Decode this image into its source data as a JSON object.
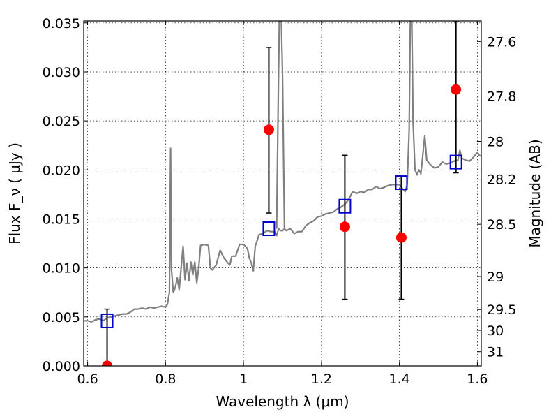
{
  "chart_data": {
    "type": "scatter",
    "title": "",
    "xlabel": "Wavelength  λ (μm)",
    "ylabel": "Flux  F_ν  ( μJy )",
    "ylabel_right": "Magnitude (AB)",
    "xlim": [
      0.59,
      1.61
    ],
    "ylim": [
      0.0,
      0.0352
    ],
    "grid": true,
    "x_ticks": [
      0.6,
      0.8,
      1.0,
      1.2,
      1.4,
      1.6
    ],
    "x_tick_labels": [
      "0.6",
      "0.8",
      "1",
      "1.2",
      "1.4",
      "1.6"
    ],
    "y_ticks": [
      0.0,
      0.005,
      0.01,
      0.015,
      0.02,
      0.025,
      0.03,
      0.035
    ],
    "y_tick_labels": [
      "0.000",
      "0.005",
      "0.010",
      "0.015",
      "0.020",
      "0.025",
      "0.030",
      "0.035"
    ],
    "right_ticks": [
      {
        "label": "27.6",
        "mag": 27.6
      },
      {
        "label": "27.8",
        "mag": 27.8
      },
      {
        "label": "28",
        "mag": 28.0
      },
      {
        "label": "28.2",
        "mag": 28.2
      },
      {
        "label": "28.5",
        "mag": 28.5
      },
      {
        "label": "29",
        "mag": 29.0
      },
      {
        "label": "29.5",
        "mag": 29.5
      },
      {
        "label": "30",
        "mag": 30.0
      },
      {
        "label": "31",
        "mag": 31.0
      }
    ],
    "series": [
      {
        "kind": "line",
        "color": "#808080",
        "points": [
          [
            0.59,
            0.0046
          ],
          [
            0.6,
            0.0046
          ],
          [
            0.61,
            0.0045
          ],
          [
            0.62,
            0.0047
          ],
          [
            0.63,
            0.0048
          ],
          [
            0.64,
            0.0046
          ],
          [
            0.65,
            0.0049
          ],
          [
            0.66,
            0.005
          ],
          [
            0.67,
            0.0051
          ],
          [
            0.68,
            0.0052
          ],
          [
            0.69,
            0.0053
          ],
          [
            0.7,
            0.0053
          ],
          [
            0.71,
            0.0055
          ],
          [
            0.72,
            0.0058
          ],
          [
            0.73,
            0.0058
          ],
          [
            0.74,
            0.0059
          ],
          [
            0.75,
            0.0058
          ],
          [
            0.76,
            0.006
          ],
          [
            0.77,
            0.0059
          ],
          [
            0.78,
            0.006
          ],
          [
            0.79,
            0.0061
          ],
          [
            0.8,
            0.006
          ],
          [
            0.805,
            0.0063
          ],
          [
            0.81,
            0.0075
          ],
          [
            0.813,
            0.0222
          ],
          [
            0.815,
            0.01
          ],
          [
            0.82,
            0.0075
          ],
          [
            0.825,
            0.008
          ],
          [
            0.83,
            0.009
          ],
          [
            0.835,
            0.0078
          ],
          [
            0.84,
            0.01
          ],
          [
            0.845,
            0.0122
          ],
          [
            0.85,
            0.0088
          ],
          [
            0.855,
            0.0105
          ],
          [
            0.86,
            0.0087
          ],
          [
            0.865,
            0.0106
          ],
          [
            0.87,
            0.0093
          ],
          [
            0.875,
            0.0106
          ],
          [
            0.88,
            0.0085
          ],
          [
            0.885,
            0.01
          ],
          [
            0.89,
            0.0123
          ],
          [
            0.9,
            0.0124
          ],
          [
            0.91,
            0.0123
          ],
          [
            0.915,
            0.01
          ],
          [
            0.92,
            0.0098
          ],
          [
            0.93,
            0.0103
          ],
          [
            0.94,
            0.0118
          ],
          [
            0.95,
            0.011
          ],
          [
            0.96,
            0.0105
          ],
          [
            0.965,
            0.0103
          ],
          [
            0.97,
            0.0112
          ],
          [
            0.98,
            0.0112
          ],
          [
            0.99,
            0.0124
          ],
          [
            1.0,
            0.0124
          ],
          [
            1.01,
            0.012
          ],
          [
            1.015,
            0.011
          ],
          [
            1.02,
            0.0105
          ],
          [
            1.025,
            0.0097
          ],
          [
            1.03,
            0.0122
          ],
          [
            1.04,
            0.0134
          ],
          [
            1.05,
            0.0135
          ],
          [
            1.06,
            0.0138
          ],
          [
            1.07,
            0.0137
          ],
          [
            1.08,
            0.0137
          ],
          [
            1.085,
            0.0133
          ],
          [
            1.09,
            0.014
          ],
          [
            1.095,
            0.0138
          ],
          [
            1.1,
            0.0138
          ],
          [
            1.105,
            0.014
          ],
          [
            1.11,
            0.0138
          ],
          [
            1.12,
            0.014
          ],
          [
            1.13,
            0.0135
          ],
          [
            1.14,
            0.0137
          ],
          [
            1.15,
            0.0137
          ],
          [
            1.16,
            0.0143
          ],
          [
            1.17,
            0.0146
          ],
          [
            1.18,
            0.0148
          ],
          [
            1.19,
            0.0152
          ],
          [
            1.2,
            0.0153
          ],
          [
            1.21,
            0.0155
          ],
          [
            1.22,
            0.0156
          ],
          [
            1.23,
            0.0157
          ],
          [
            1.24,
            0.016
          ],
          [
            1.25,
            0.0162
          ],
          [
            1.26,
            0.0165
          ],
          [
            1.27,
            0.017
          ],
          [
            1.28,
            0.0178
          ],
          [
            1.29,
            0.0176
          ],
          [
            1.3,
            0.0178
          ],
          [
            1.31,
            0.0177
          ],
          [
            1.32,
            0.018
          ],
          [
            1.33,
            0.018
          ],
          [
            1.34,
            0.0183
          ],
          [
            1.35,
            0.0181
          ],
          [
            1.36,
            0.0182
          ],
          [
            1.37,
            0.0184
          ],
          [
            1.38,
            0.0185
          ],
          [
            1.39,
            0.0185
          ],
          [
            1.4,
            0.0185
          ],
          [
            1.41,
            0.018
          ],
          [
            1.415,
            0.0178
          ],
          [
            1.42,
            0.0185
          ],
          [
            1.425,
            0.024
          ],
          [
            1.428,
            0.0352
          ],
          [
            1.432,
            0.0352
          ],
          [
            1.435,
            0.025
          ],
          [
            1.44,
            0.02
          ],
          [
            1.445,
            0.0195
          ],
          [
            1.45,
            0.02
          ],
          [
            1.455,
            0.0196
          ],
          [
            1.46,
            0.0215
          ],
          [
            1.465,
            0.0235
          ],
          [
            1.47,
            0.021
          ],
          [
            1.48,
            0.0205
          ],
          [
            1.49,
            0.0202
          ],
          [
            1.5,
            0.0203
          ],
          [
            1.51,
            0.0208
          ],
          [
            1.52,
            0.0206
          ],
          [
            1.53,
            0.0207
          ],
          [
            1.54,
            0.0209
          ],
          [
            1.55,
            0.021
          ],
          [
            1.555,
            0.022
          ],
          [
            1.56,
            0.0212
          ],
          [
            1.57,
            0.021
          ],
          [
            1.58,
            0.0209
          ],
          [
            1.59,
            0.0213
          ],
          [
            1.6,
            0.0218
          ],
          [
            1.605,
            0.0215
          ],
          [
            1.61,
            0.0214
          ]
        ]
      },
      {
        "kind": "line",
        "color": "#808080",
        "points": [
          [
            1.085,
            0.014
          ],
          [
            1.09,
            0.03
          ],
          [
            1.092,
            0.0352
          ],
          [
            1.097,
            0.0352
          ],
          [
            1.1,
            0.03
          ],
          [
            1.105,
            0.0141
          ]
        ]
      },
      {
        "kind": "scatter",
        "marker": "circle",
        "color": "#ff0000",
        "x": [
          0.65,
          1.065,
          1.26,
          1.405,
          1.545
        ],
        "y": [
          0.0,
          0.0241,
          0.0142,
          0.0131,
          0.0282
        ],
        "yerr_low": [
          0.0,
          0.0156,
          0.0068,
          0.0068,
          0.0197
        ],
        "yerr_high": [
          0.0058,
          0.0325,
          0.0215,
          0.0193,
          0.0352
        ]
      },
      {
        "kind": "scatter",
        "marker": "square-open",
        "color": "#0000cc",
        "x": [
          0.65,
          1.065,
          1.26,
          1.405,
          1.545
        ],
        "y": [
          0.0046,
          0.014,
          0.0163,
          0.0187,
          0.0208
        ]
      }
    ]
  }
}
